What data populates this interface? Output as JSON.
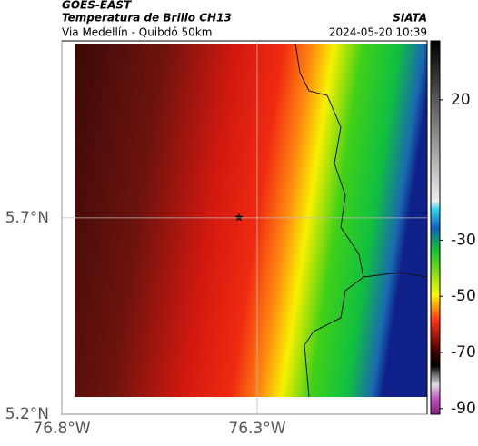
{
  "chart_data": {
    "type": "heatmap",
    "satellite": "GOES-EAST",
    "title": "Temperatura de Brillo CH13",
    "subtitle": "Via Medellín - Quibdó 50km",
    "brand": "SIATA",
    "timestamp": "2024-05-20 10:39",
    "xlim": [
      -76.8,
      -75.865
    ],
    "ylim": [
      5.2,
      6.151
    ],
    "xticks": [
      {
        "value": -76.8,
        "label": "76.8°W"
      },
      {
        "value": -76.3,
        "label": "76.3°W"
      }
    ],
    "yticks": [
      {
        "value": 5.2,
        "label": "5.2°N"
      },
      {
        "value": 5.7,
        "label": "5.7°N"
      }
    ],
    "grid": true,
    "colorbar": {
      "lim": [
        -92,
        41
      ],
      "ticks": [
        20,
        -30,
        -50,
        -70,
        -90
      ]
    }
  }
}
